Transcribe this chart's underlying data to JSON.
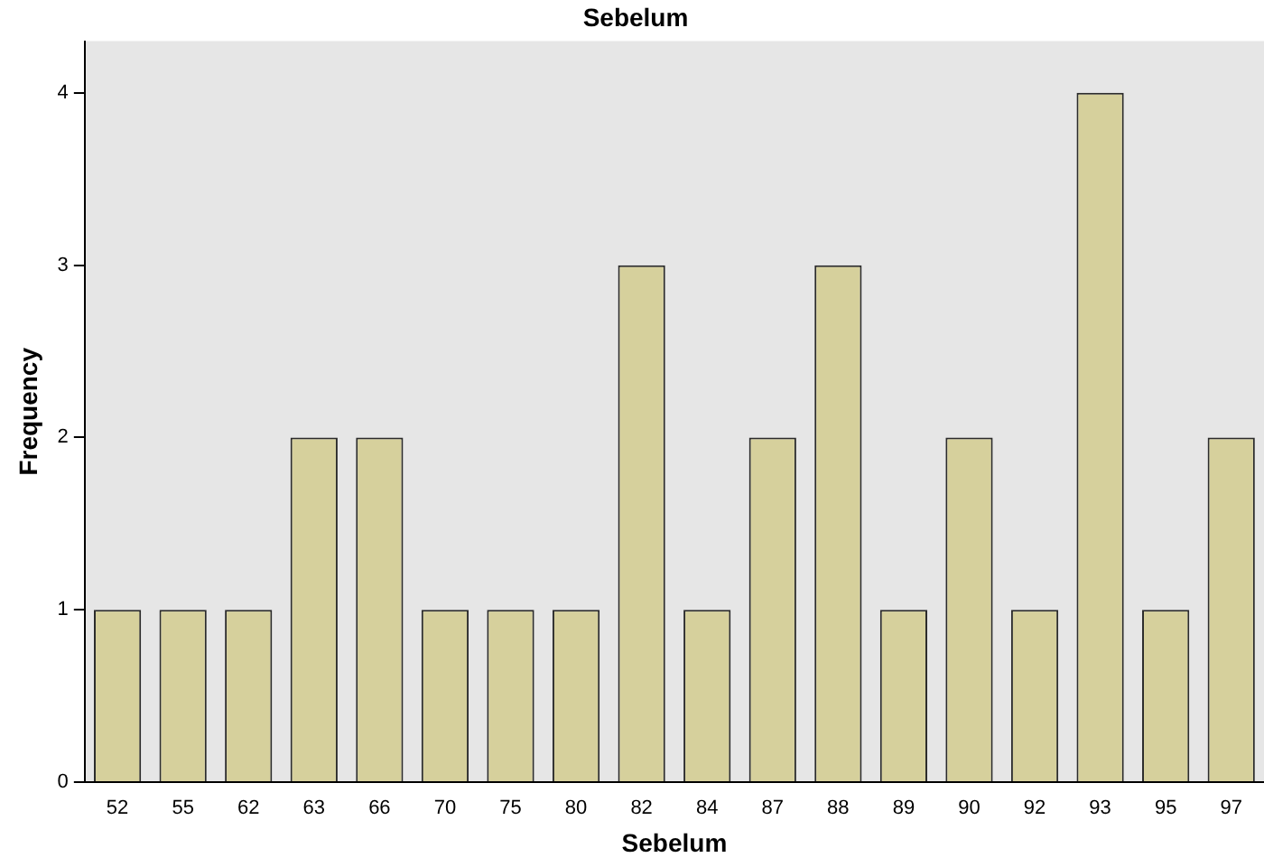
{
  "chart_data": {
    "type": "bar",
    "title": "Sebelum",
    "xlabel": "Sebelum",
    "ylabel": "Frequency",
    "categories": [
      "52",
      "55",
      "62",
      "63",
      "66",
      "70",
      "75",
      "80",
      "82",
      "84",
      "87",
      "88",
      "89",
      "90",
      "92",
      "93",
      "95",
      "97"
    ],
    "values": [
      1,
      1,
      1,
      2,
      2,
      1,
      1,
      1,
      3,
      1,
      2,
      3,
      1,
      2,
      1,
      4,
      1,
      2
    ],
    "color": "#d6d09c",
    "ylim": [
      0,
      4.3
    ],
    "yticks": [
      0,
      1,
      2,
      3,
      4
    ],
    "grid": false,
    "legend": false
  }
}
